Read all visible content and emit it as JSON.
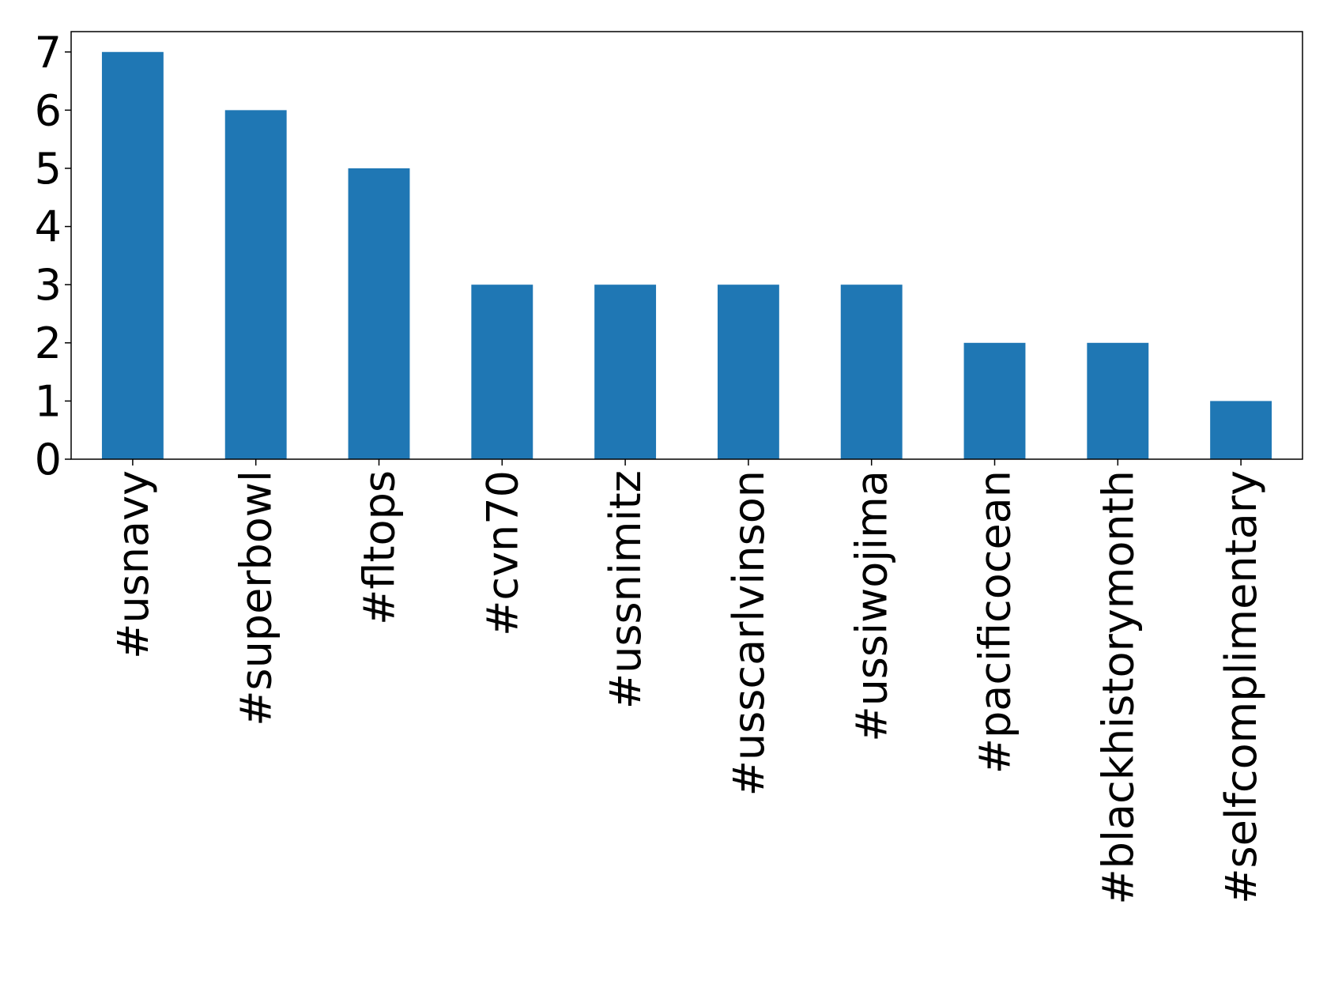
{
  "chart_data": {
    "type": "bar",
    "categories": [
      "#usnavy",
      "#superbowl",
      "#fltops",
      "#cvn70",
      "#ussnimitz",
      "#usscarlvinson",
      "#ussiwojima",
      "#pacificocean",
      "#blackhistorymonth",
      "#selfcomplimentary"
    ],
    "values": [
      7,
      6,
      5,
      3,
      3,
      3,
      3,
      2,
      2,
      1
    ],
    "color": "#1f77b4",
    "ylim": [
      0,
      7.35
    ],
    "yticks": [
      0,
      1,
      2,
      3,
      4,
      5,
      6,
      7
    ],
    "grid": false
  }
}
